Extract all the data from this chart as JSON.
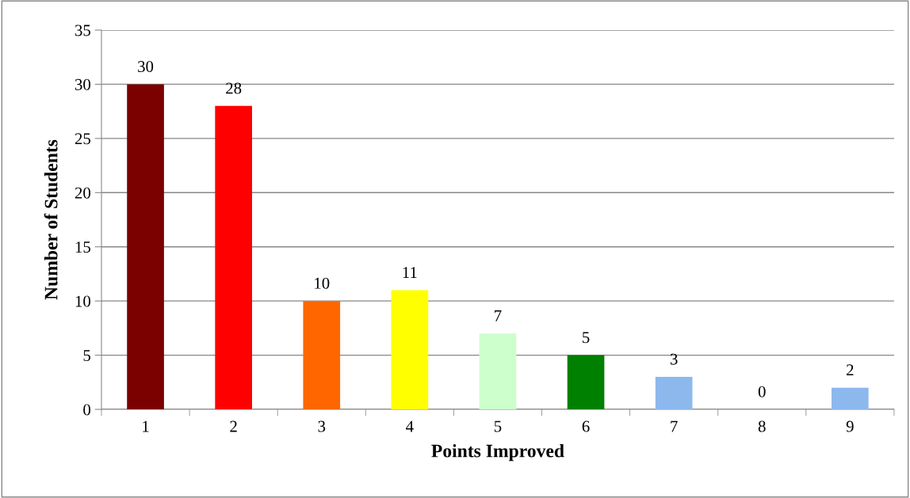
{
  "chart_data": {
    "type": "bar",
    "xlabel": "Points Improved",
    "ylabel": "Number of Students",
    "categories": [
      "1",
      "2",
      "3",
      "4",
      "5",
      "6",
      "7",
      "8",
      "9"
    ],
    "values": [
      30,
      28,
      10,
      11,
      7,
      5,
      3,
      0,
      2
    ],
    "colors": [
      "#7b0000",
      "#ff0000",
      "#ff6600",
      "#ffff00",
      "#ccffcc",
      "#008000",
      "#8cb8ee",
      "#8cb8ee",
      "#8cb8ee"
    ],
    "ylim": [
      0,
      35
    ],
    "yticks": [
      0,
      5,
      10,
      15,
      20,
      25,
      30,
      35
    ],
    "grid": "y",
    "data_labels": true,
    "legend": false
  }
}
